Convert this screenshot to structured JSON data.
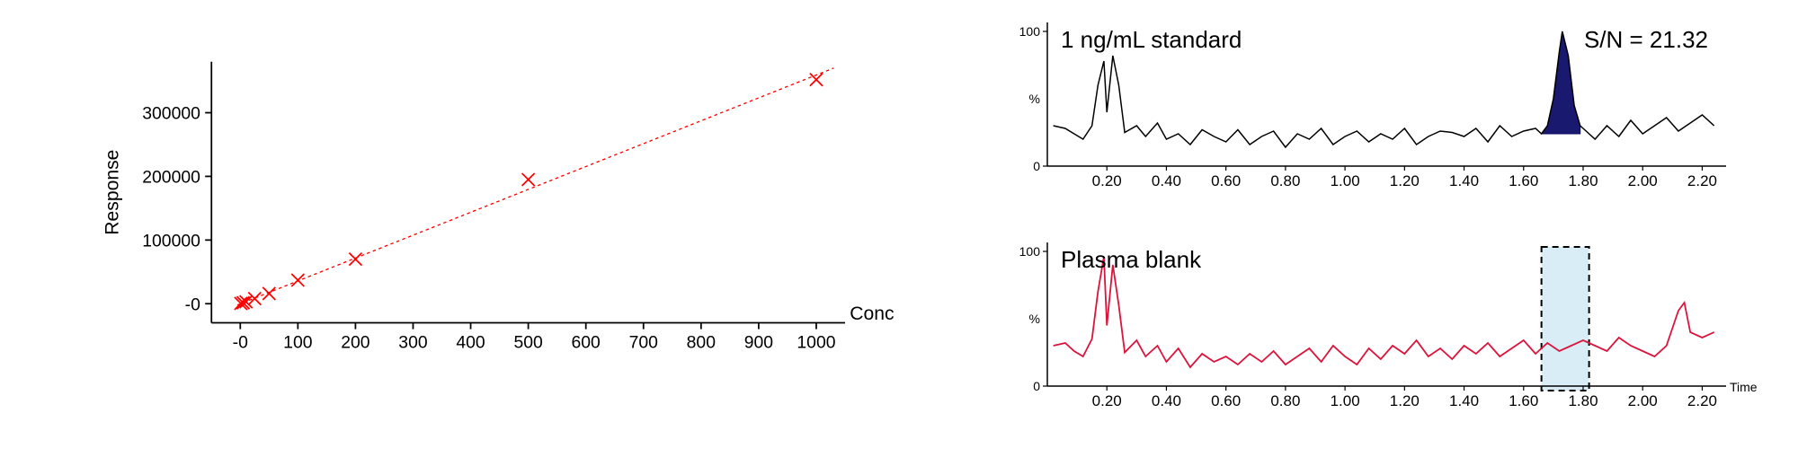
{
  "calibration": {
    "type": "scatter",
    "xlabel": "Conc",
    "ylabel": "Response",
    "xlim": [
      -50,
      1050
    ],
    "ylim": [
      -30000,
      380000
    ],
    "xticks": [
      0,
      100,
      200,
      300,
      400,
      500,
      600,
      700,
      800,
      900,
      1000
    ],
    "xtick_labels": [
      "-0",
      "100",
      "200",
      "300",
      "400",
      "500",
      "600",
      "700",
      "800",
      "900",
      "1000"
    ],
    "yticks": [
      0,
      100000,
      200000,
      300000
    ],
    "ytick_labels": [
      "-0",
      "100000",
      "200000",
      "300000"
    ],
    "marker_style": "x",
    "marker_color": "#ff0000",
    "line_color": "#ff0000",
    "line_dash": "4,4",
    "points_x": [
      1,
      5,
      10,
      25,
      50,
      100,
      200,
      500,
      1000
    ],
    "points_y": [
      500,
      1500,
      3000,
      8000,
      16000,
      37000,
      70000,
      195000,
      352000
    ],
    "fit_from": [
      -5,
      -2000
    ],
    "fit_to": [
      1030,
      370000
    ],
    "background_color": "#ffffff",
    "label_fontsize": 24,
    "tick_fontsize": 22
  },
  "chrom_top": {
    "type": "line",
    "title": "1 ng/mL standard",
    "sn_text": "S/N = 21.32",
    "xlim": [
      0,
      2.25
    ],
    "ylim": [
      0,
      100
    ],
    "xticks": [
      0.2,
      0.4,
      0.6,
      0.8,
      1.0,
      1.2,
      1.4,
      1.6,
      1.8,
      2.0,
      2.2
    ],
    "xtick_labels": [
      "0.20",
      "0.40",
      "0.60",
      "0.80",
      "1.00",
      "1.20",
      "1.40",
      "1.60",
      "1.80",
      "2.00",
      "2.20"
    ],
    "trace_color": "#000000",
    "peak_fill_color": "#191970",
    "peak_window": [
      1.66,
      1.8
    ],
    "trace": [
      [
        0.02,
        30
      ],
      [
        0.06,
        28
      ],
      [
        0.09,
        24
      ],
      [
        0.12,
        20
      ],
      [
        0.15,
        30
      ],
      [
        0.17,
        60
      ],
      [
        0.19,
        78
      ],
      [
        0.2,
        40
      ],
      [
        0.22,
        82
      ],
      [
        0.24,
        60
      ],
      [
        0.26,
        25
      ],
      [
        0.3,
        30
      ],
      [
        0.33,
        22
      ],
      [
        0.37,
        32
      ],
      [
        0.4,
        20
      ],
      [
        0.44,
        24
      ],
      [
        0.48,
        16
      ],
      [
        0.52,
        27
      ],
      [
        0.56,
        22
      ],
      [
        0.6,
        18
      ],
      [
        0.64,
        27
      ],
      [
        0.68,
        16
      ],
      [
        0.72,
        22
      ],
      [
        0.76,
        26
      ],
      [
        0.8,
        14
      ],
      [
        0.84,
        24
      ],
      [
        0.88,
        20
      ],
      [
        0.92,
        28
      ],
      [
        0.96,
        16
      ],
      [
        1.0,
        22
      ],
      [
        1.04,
        26
      ],
      [
        1.08,
        18
      ],
      [
        1.12,
        24
      ],
      [
        1.16,
        20
      ],
      [
        1.2,
        28
      ],
      [
        1.24,
        16
      ],
      [
        1.28,
        22
      ],
      [
        1.32,
        26
      ],
      [
        1.36,
        25
      ],
      [
        1.4,
        22
      ],
      [
        1.44,
        28
      ],
      [
        1.48,
        18
      ],
      [
        1.52,
        30
      ],
      [
        1.56,
        22
      ],
      [
        1.6,
        26
      ],
      [
        1.64,
        28
      ],
      [
        1.66,
        24
      ],
      [
        1.68,
        30
      ],
      [
        1.7,
        50
      ],
      [
        1.72,
        85
      ],
      [
        1.73,
        100
      ],
      [
        1.75,
        82
      ],
      [
        1.77,
        45
      ],
      [
        1.79,
        30
      ],
      [
        1.81,
        26
      ],
      [
        1.84,
        20
      ],
      [
        1.88,
        30
      ],
      [
        1.92,
        22
      ],
      [
        1.96,
        34
      ],
      [
        2.0,
        24
      ],
      [
        2.04,
        30
      ],
      [
        2.08,
        36
      ],
      [
        2.12,
        26
      ],
      [
        2.16,
        32
      ],
      [
        2.2,
        38
      ],
      [
        2.24,
        30
      ]
    ],
    "label_fontsize": 26
  },
  "chrom_bottom": {
    "type": "line",
    "title": "Plasma blank",
    "xlim": [
      0,
      2.25
    ],
    "ylim": [
      0,
      100
    ],
    "xticks": [
      0.2,
      0.4,
      0.6,
      0.8,
      1.0,
      1.2,
      1.4,
      1.6,
      1.8,
      2.0,
      2.2
    ],
    "xtick_labels": [
      "0.20",
      "0.40",
      "0.60",
      "0.80",
      "1.00",
      "1.20",
      "1.40",
      "1.60",
      "1.80",
      "2.00",
      "2.20"
    ],
    "trace_color": "#dc143c",
    "highlight_window": [
      1.66,
      1.82
    ],
    "highlight_color": "#b4dced",
    "trace": [
      [
        0.02,
        30
      ],
      [
        0.06,
        32
      ],
      [
        0.09,
        26
      ],
      [
        0.12,
        22
      ],
      [
        0.15,
        35
      ],
      [
        0.17,
        70
      ],
      [
        0.19,
        96
      ],
      [
        0.2,
        45
      ],
      [
        0.22,
        90
      ],
      [
        0.24,
        60
      ],
      [
        0.26,
        25
      ],
      [
        0.3,
        34
      ],
      [
        0.33,
        22
      ],
      [
        0.37,
        30
      ],
      [
        0.4,
        18
      ],
      [
        0.44,
        28
      ],
      [
        0.48,
        14
      ],
      [
        0.52,
        24
      ],
      [
        0.56,
        18
      ],
      [
        0.6,
        22
      ],
      [
        0.64,
        16
      ],
      [
        0.68,
        24
      ],
      [
        0.72,
        18
      ],
      [
        0.76,
        26
      ],
      [
        0.8,
        16
      ],
      [
        0.84,
        22
      ],
      [
        0.88,
        28
      ],
      [
        0.92,
        18
      ],
      [
        0.96,
        30
      ],
      [
        1.0,
        22
      ],
      [
        1.04,
        16
      ],
      [
        1.08,
        28
      ],
      [
        1.12,
        20
      ],
      [
        1.16,
        30
      ],
      [
        1.2,
        24
      ],
      [
        1.24,
        34
      ],
      [
        1.28,
        22
      ],
      [
        1.32,
        28
      ],
      [
        1.36,
        20
      ],
      [
        1.4,
        30
      ],
      [
        1.44,
        24
      ],
      [
        1.48,
        32
      ],
      [
        1.52,
        22
      ],
      [
        1.56,
        28
      ],
      [
        1.6,
        34
      ],
      [
        1.64,
        24
      ],
      [
        1.68,
        32
      ],
      [
        1.72,
        26
      ],
      [
        1.76,
        30
      ],
      [
        1.8,
        34
      ],
      [
        1.84,
        30
      ],
      [
        1.88,
        26
      ],
      [
        1.92,
        36
      ],
      [
        1.96,
        30
      ],
      [
        2.0,
        26
      ],
      [
        2.04,
        22
      ],
      [
        2.08,
        30
      ],
      [
        2.12,
        56
      ],
      [
        2.14,
        62
      ],
      [
        2.16,
        40
      ],
      [
        2.2,
        36
      ],
      [
        2.24,
        40
      ]
    ],
    "time_label": "Time",
    "label_fontsize": 26
  },
  "y_axis_100": "100",
  "y_axis_pct": "%",
  "y_axis_0": "0"
}
